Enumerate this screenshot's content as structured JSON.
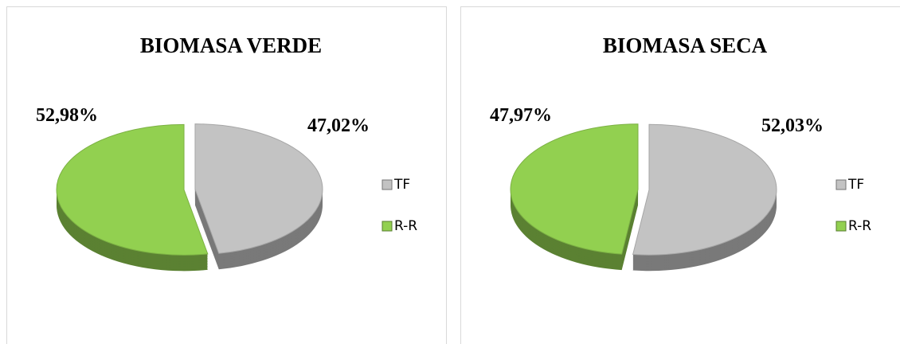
{
  "chart_data": [
    {
      "type": "pie",
      "title": "BIOMASA VERDE",
      "categories": [
        "TF",
        "R-R"
      ],
      "values": [
        47.02,
        52.98
      ],
      "value_labels": [
        "47,02%",
        "52,98%"
      ],
      "colors": [
        "#c3c3c3",
        "#92d050"
      ]
    },
    {
      "type": "pie",
      "title": "BIOMASA SECA",
      "categories": [
        "TF",
        "R-R"
      ],
      "values": [
        52.03,
        47.97
      ],
      "value_labels": [
        "52,03%",
        "47,97%"
      ],
      "colors": [
        "#c3c3c3",
        "#92d050"
      ]
    }
  ]
}
